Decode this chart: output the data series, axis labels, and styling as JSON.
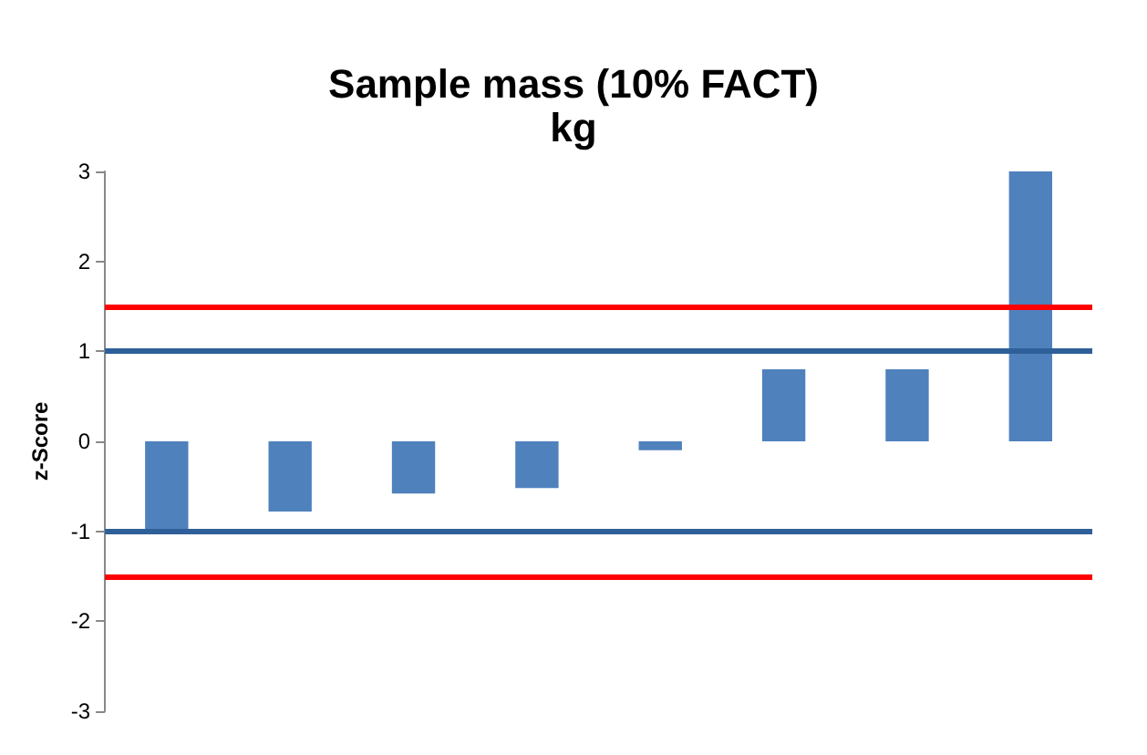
{
  "chart_data": {
    "type": "bar",
    "title": "Sample mass (10% FACT)",
    "subtitle": "kg",
    "ylabel": "z-Score",
    "categories": [
      null,
      null,
      null,
      null,
      null,
      null,
      null,
      null
    ],
    "values": [
      -1.0,
      -0.78,
      -0.58,
      -0.52,
      -0.1,
      0.8,
      0.8,
      3.0
    ],
    "color": "#4f81bd",
    "ylim": [
      -3,
      3
    ],
    "yticks": [
      -3,
      -2,
      -1,
      0,
      1,
      2,
      3
    ],
    "grid": false,
    "ref_lines": [
      {
        "axis": "y",
        "value": 1.5,
        "color": "#ff0000"
      },
      {
        "axis": "y",
        "value": 1,
        "color": "#2f5f98"
      },
      {
        "axis": "y",
        "value": -1,
        "color": "#2f5f98"
      },
      {
        "axis": "y",
        "value": -1.5,
        "color": "#ff0000"
      }
    ]
  }
}
